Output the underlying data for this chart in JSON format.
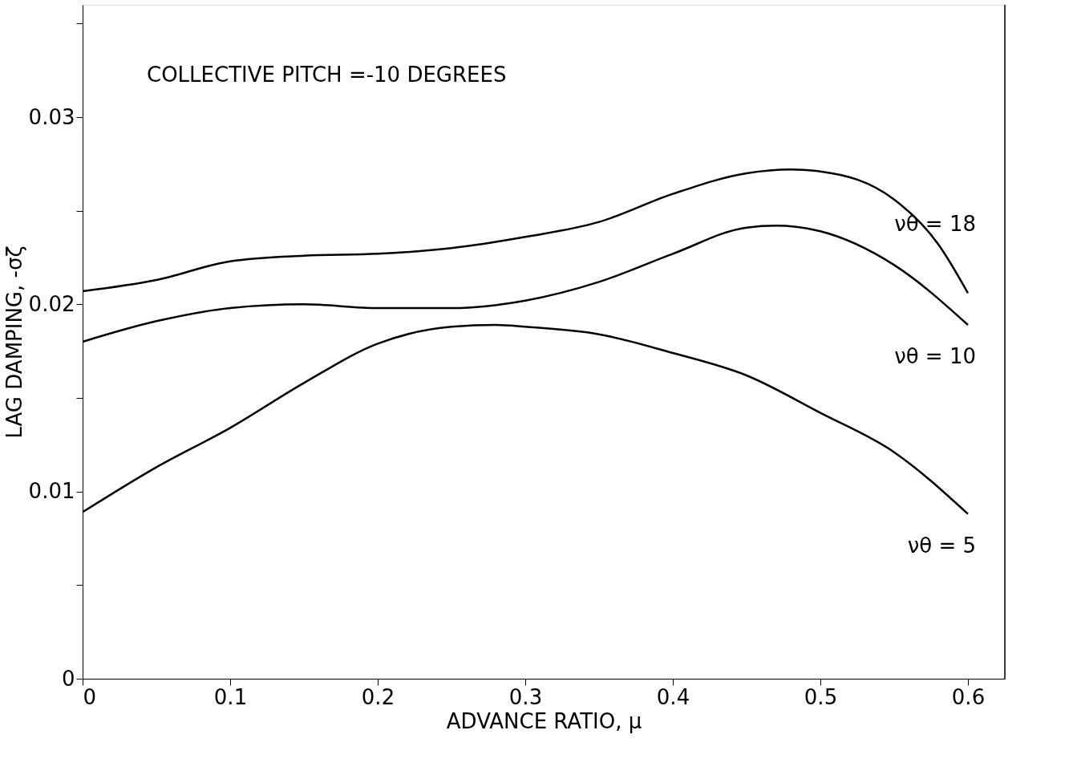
{
  "chart_data": {
    "type": "line",
    "xlabel": "ADVANCE RATIO, μ",
    "ylabel": "LAG DAMPING, -σζ",
    "annotations": [
      "COLLECTIVE PITCH =-10 DEGREES"
    ],
    "x": [
      0,
      0.05,
      0.1,
      0.15,
      0.2,
      0.25,
      0.3,
      0.35,
      0.4,
      0.45,
      0.48,
      0.5,
      0.55,
      0.58,
      0.6
    ],
    "series": [
      {
        "name": "νθ = 18",
        "color": "#000000",
        "values": [
          0.0207,
          0.0213,
          0.0223,
          0.0226,
          0.0227,
          0.023,
          0.0236,
          0.0244,
          0.0259,
          0.027,
          0.0272,
          0.0271,
          0.0256,
          0.0232,
          0.0206
        ]
      },
      {
        "name": "νθ = 10",
        "color": "#000000",
        "x": [
          0,
          0.05,
          0.1,
          0.15,
          0.2,
          0.25,
          0.3,
          0.35,
          0.4,
          0.45,
          0.47,
          0.5,
          0.55,
          0.6
        ],
        "values": [
          0.018,
          0.0191,
          0.0198,
          0.02,
          0.0198,
          0.0198,
          0.0202,
          0.0212,
          0.0227,
          0.0241,
          0.0242,
          0.0239,
          0.0221,
          0.0189
        ]
      },
      {
        "name": "νθ = 5",
        "color": "#000000",
        "x": [
          0,
          0.05,
          0.1,
          0.15,
          0.2,
          0.25,
          0.28,
          0.3,
          0.35,
          0.4,
          0.45,
          0.5,
          0.55,
          0.6
        ],
        "values": [
          0.0089,
          0.0113,
          0.0134,
          0.0158,
          0.0179,
          0.0188,
          0.0189,
          0.0188,
          0.0184,
          0.0174,
          0.0162,
          0.0142,
          0.0121,
          0.0088
        ]
      }
    ],
    "xlim": [
      0,
      0.625
    ],
    "xticks": [
      0,
      0.1,
      0.2,
      0.3,
      0.4,
      0.5,
      0.6
    ],
    "ylim": [
      0,
      0.036
    ],
    "yticks": [
      0,
      {
        "value": 0.005,
        "label": null
      },
      0.01,
      {
        "value": 0.015,
        "label": null
      },
      0.02,
      {
        "value": 0.025,
        "label": null
      },
      0.03,
      {
        "value": 0.035,
        "label": null
      }
    ],
    "grid": false,
    "marker": "none",
    "line_style": "solid"
  }
}
